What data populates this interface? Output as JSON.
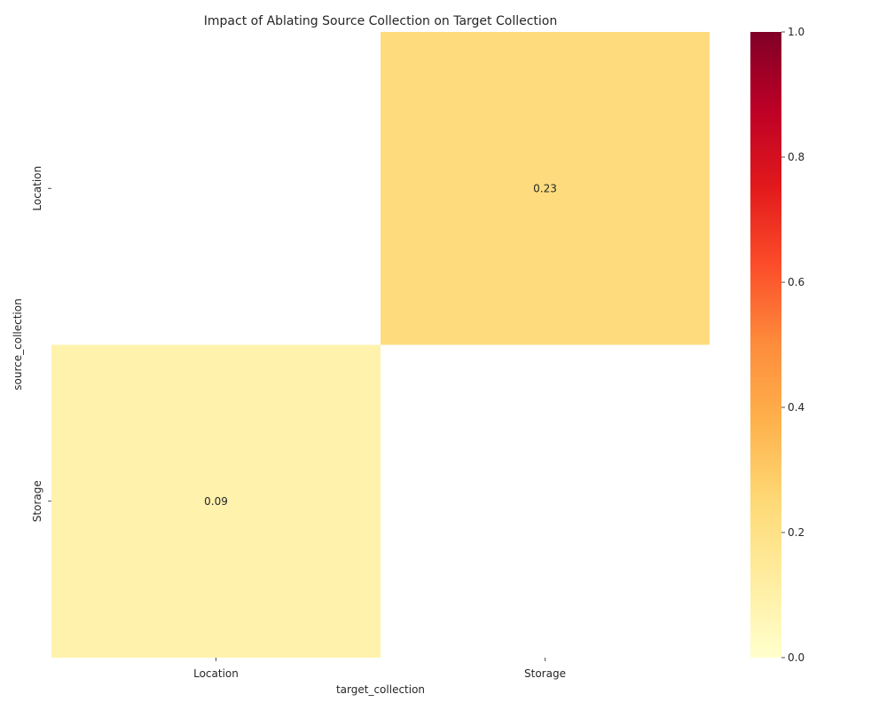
{
  "chart_data": {
    "type": "heatmap",
    "title": "Impact of Ablating Source Collection on Target Collection",
    "xlabel": "target_collection",
    "ylabel": "source_collection",
    "x_categories": [
      "Location",
      "Storage"
    ],
    "y_categories": [
      "Location",
      "Storage"
    ],
    "cells": [
      {
        "row": "Location",
        "col": "Location",
        "value": null,
        "label": ""
      },
      {
        "row": "Location",
        "col": "Storage",
        "value": 0.23,
        "label": "0.23"
      },
      {
        "row": "Storage",
        "col": "Location",
        "value": 0.09,
        "label": "0.09"
      },
      {
        "row": "Storage",
        "col": "Storage",
        "value": null,
        "label": ""
      }
    ],
    "colorbar": {
      "min": 0.0,
      "max": 1.0,
      "colormap": "YlOrRd",
      "ticks": [
        "0.0",
        "0.2",
        "0.4",
        "0.6",
        "0.8",
        "1.0"
      ]
    }
  }
}
